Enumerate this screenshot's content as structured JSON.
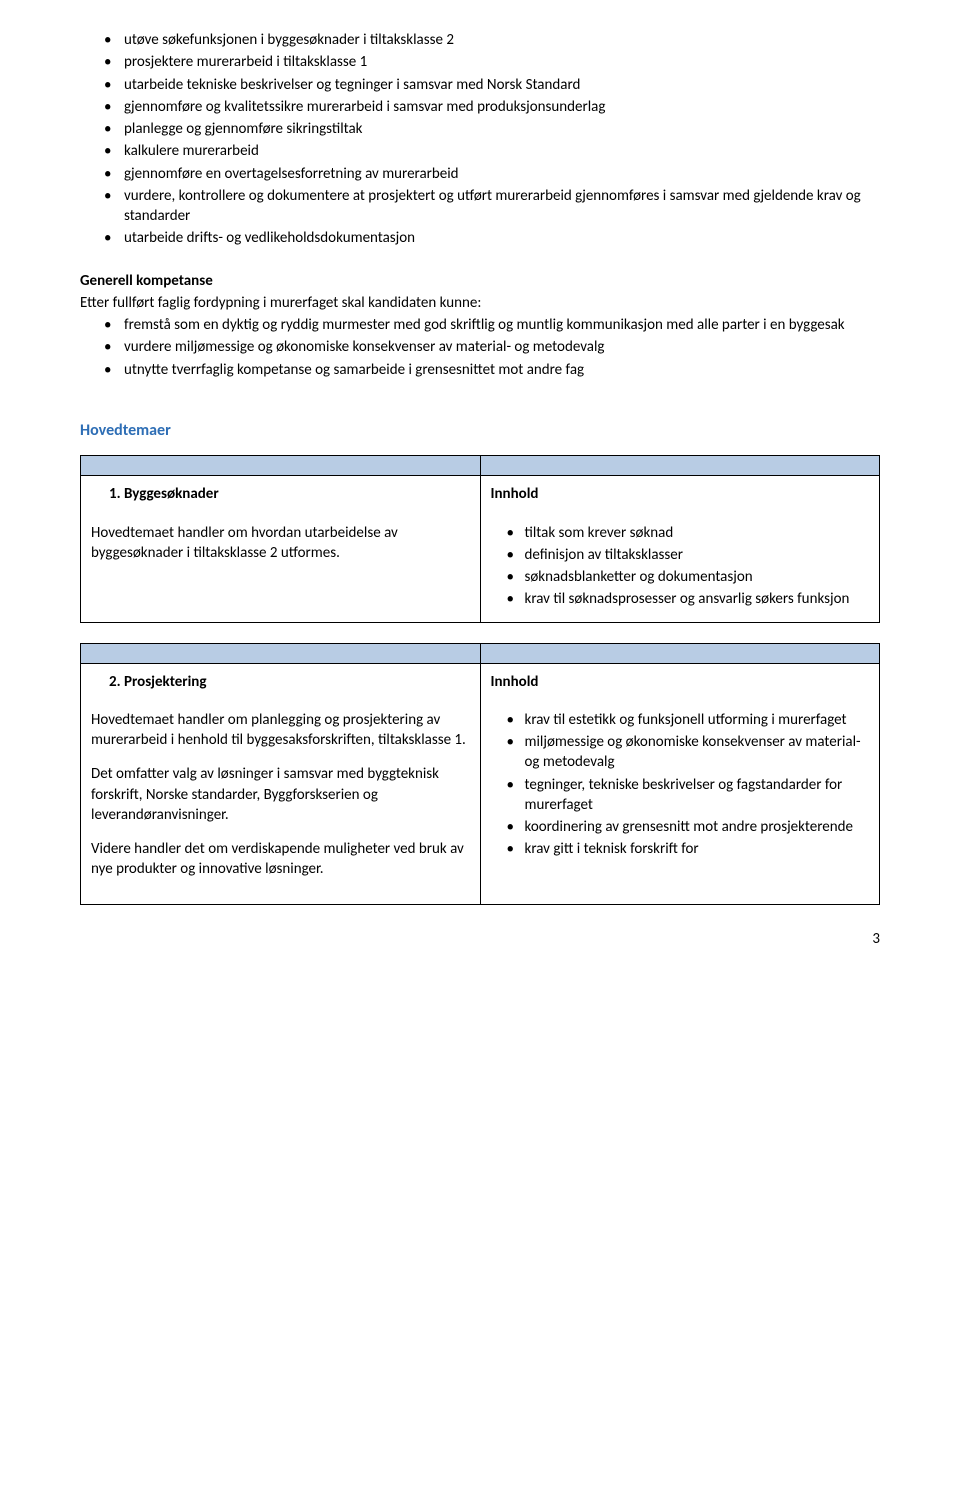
{
  "bulletListTop": [
    "utøve søkefunksjonen i byggesøknader i tiltaksklasse 2",
    "prosjektere murerarbeid i tiltaksklasse 1",
    "utarbeide tekniske beskrivelser og tegninger i samsvar med Norsk Standard",
    "gjennomføre og kvalitetssikre murerarbeid i samsvar med produksjonsunderlag",
    "planlegge og gjennomføre sikringstiltak",
    "kalkulere murerarbeid",
    "gjennomføre en overtagelsesforretning av murerarbeid",
    "vurdere, kontrollere og dokumentere at prosjektert og utført murerarbeid gjennomføres i samsvar med gjeldende krav og standarder",
    "utarbeide drifts- og vedlikeholdsdokumentasjon"
  ],
  "generalCompetence": {
    "heading": "Generell kompetanse",
    "lead": "Etter fullført faglig fordypning i murerfaget skal kandidaten kunne:",
    "items": [
      "fremstå som en dyktig og ryddig murmester med god skriftlig og muntlig kommunikasjon med alle parter i en byggesak",
      "vurdere miljømessige og økonomiske konsekvenser av material- og metodevalg",
      "utnytte tverrfaglig kompetanse og samarbeide i grensesnittet mot andre fag"
    ]
  },
  "mainTopicsHeading": "Hovedtemaer",
  "topic1": {
    "title": "1. Byggesøknader",
    "desc": [
      "Hovedtemaet handler om hvordan utarbeidelse av byggesøknader i tiltaksklasse 2 utformes."
    ],
    "contentHeading": "Innhold",
    "contentItems": [
      "tiltak som krever søknad",
      "definisjon av tiltaksklasser",
      "søknadsblanketter og dokumentasjon",
      "krav til søknadsprosesser og ansvarlig søkers funksjon"
    ]
  },
  "topic2": {
    "title": "2. Prosjektering",
    "desc": [
      "Hovedtemaet handler om planlegging og prosjektering av murerarbeid i henhold til byggesaksforskriften, tiltaksklasse 1.",
      "Det omfatter valg av løsninger i samsvar med byggteknisk forskrift, Norske standarder, Byggforskserien og leverandøranvisninger.",
      "Videre handler det om verdiskapende muligheter ved bruk av nye produkter og innovative løsninger."
    ],
    "contentHeading": "Innhold",
    "contentItems": [
      "krav til estetikk og funksjonell utforming i murerfaget",
      "miljømessige og økonomiske konsekvenser av material- og metodevalg",
      "tegninger, tekniske beskrivelser og fagstandarder for murerfaget",
      "koordinering av grensesnitt mot andre prosjekterende",
      "krav gitt i teknisk forskrift for"
    ]
  },
  "pageNumber": "3"
}
